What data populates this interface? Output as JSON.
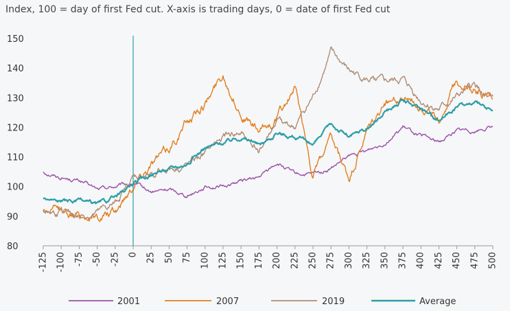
{
  "chart_data": {
    "type": "line",
    "title": "Index, 100 = day of first Fed cut. X-axis is trading days, 0 = date of first Fed cut",
    "xlabel": "",
    "ylabel": "",
    "xlim": [
      -125,
      500
    ],
    "ylim": [
      80,
      150
    ],
    "x_ticks": [
      -125,
      -100,
      -75,
      -50,
      -25,
      0,
      25,
      50,
      75,
      100,
      125,
      150,
      175,
      200,
      225,
      250,
      275,
      300,
      325,
      350,
      375,
      400,
      425,
      450,
      475,
      500
    ],
    "x_tick_labels": [
      "-125",
      "-100",
      "-75",
      "-50",
      "-25",
      "0",
      "25",
      "50",
      "75",
      "100",
      "125",
      "150",
      "175",
      "200",
      "225",
      "250",
      "275",
      "300",
      "325",
      "350",
      "375",
      "400",
      "425",
      "450",
      "475",
      "500"
    ],
    "y_ticks": [
      80,
      90,
      100,
      110,
      120,
      130,
      140,
      150
    ],
    "y_tick_labels": [
      "80",
      "90",
      "100",
      "110",
      "120",
      "130",
      "140",
      "150"
    ],
    "reference_line_x": 0,
    "grid": false,
    "legend_position": "bottom",
    "series": [
      {
        "name": "2001",
        "color": "#9b4fa8",
        "x": [
          -125,
          -100,
          -75,
          -50,
          -25,
          0,
          25,
          50,
          75,
          100,
          125,
          150,
          175,
          200,
          225,
          250,
          275,
          300,
          325,
          350,
          375,
          400,
          425,
          450,
          475,
          500
        ],
        "values": [
          105,
          103,
          102,
          99,
          100,
          101,
          98,
          99,
          97,
          100,
          100,
          102,
          103,
          108,
          104,
          104,
          106,
          110,
          112,
          115,
          120,
          117,
          115,
          119,
          119,
          120
        ]
      },
      {
        "name": "2007",
        "color": "#e07e1f",
        "x": [
          -125,
          -100,
          -75,
          -50,
          -25,
          0,
          25,
          50,
          75,
          100,
          125,
          150,
          175,
          200,
          225,
          250,
          275,
          300,
          325,
          350,
          375,
          400,
          425,
          450,
          475,
          500
        ],
        "values": [
          92,
          92,
          90,
          90,
          91,
          101,
          108,
          113,
          122,
          128,
          138,
          125,
          118,
          123,
          133,
          104,
          115,
          102,
          118,
          128,
          130,
          128,
          122,
          136,
          133,
          130
        ]
      },
      {
        "name": "2019",
        "color": "#b08b74",
        "x": [
          -125,
          -100,
          -75,
          -50,
          -25,
          0,
          25,
          50,
          75,
          100,
          125,
          150,
          175,
          200,
          225,
          250,
          275,
          300,
          325,
          350,
          375,
          400,
          425,
          450,
          475,
          500
        ],
        "values": [
          92,
          91,
          90,
          91,
          94,
          103,
          104,
          106,
          107,
          111,
          117,
          118,
          112,
          122,
          120,
          130,
          145,
          139,
          136,
          135,
          136,
          129,
          126,
          130,
          134,
          128
        ]
      },
      {
        "name": "Average",
        "color": "#2b9ea8",
        "x": [
          -125,
          -100,
          -75,
          -50,
          -25,
          0,
          25,
          50,
          75,
          100,
          125,
          150,
          175,
          200,
          225,
          250,
          275,
          300,
          325,
          350,
          375,
          400,
          425,
          450,
          475,
          500
        ],
        "values": [
          96,
          95,
          95,
          94,
          96,
          101,
          104,
          106,
          108,
          113,
          115,
          117,
          114,
          118,
          117,
          114,
          121,
          117,
          119,
          125,
          129,
          126,
          123,
          127,
          128,
          125
        ]
      }
    ]
  }
}
